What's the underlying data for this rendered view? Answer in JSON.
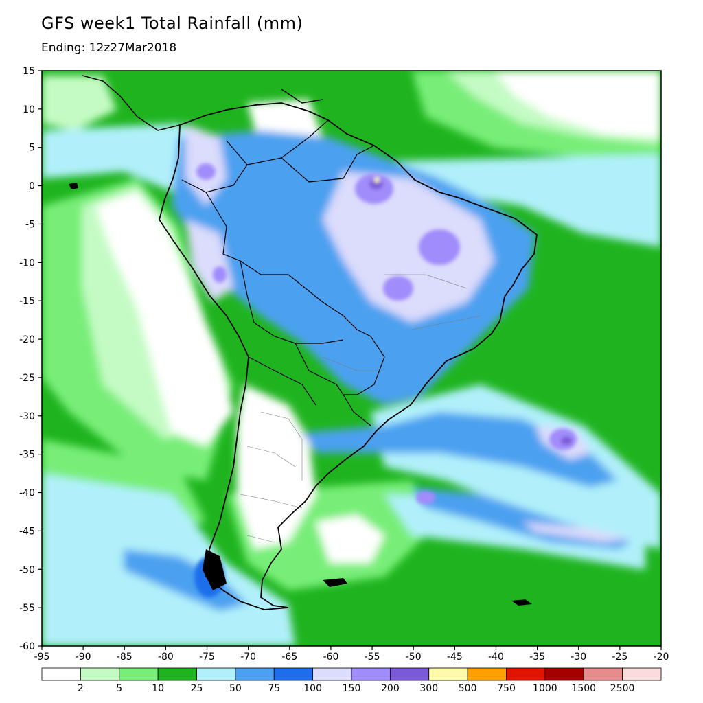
{
  "title": "GFS week1 Total Rainfall (mm)",
  "subtitle": "Ending: 12z27Mar2018",
  "axes": {
    "x_ticks": [
      "-95",
      "-90",
      "-85",
      "-80",
      "-75",
      "-70",
      "-65",
      "-60",
      "-55",
      "-50",
      "-45",
      "-40",
      "-35",
      "-30",
      "-25",
      "-20"
    ],
    "y_ticks": [
      "15",
      "10",
      "5",
      "0",
      "-5",
      "-10",
      "-15",
      "-20",
      "-25",
      "-30",
      "-35",
      "-40",
      "-45",
      "-50",
      "-55",
      "-60"
    ]
  },
  "legend": {
    "colors": [
      "#ffffff",
      "#c4fbc4",
      "#78ee78",
      "#1fb41f",
      "#b1f0fa",
      "#4ba0f0",
      "#1e6eeb",
      "#dcdcfc",
      "#a08cfa",
      "#7a5ad7",
      "#fffaaa",
      "#ffa000",
      "#e11400",
      "#a50000",
      "#e68c8c",
      "#fadcdc"
    ],
    "labels": [
      "2",
      "5",
      "10",
      "25",
      "50",
      "75",
      "100",
      "150",
      "200",
      "300",
      "500",
      "750",
      "1000",
      "1500",
      "2500"
    ]
  }
}
